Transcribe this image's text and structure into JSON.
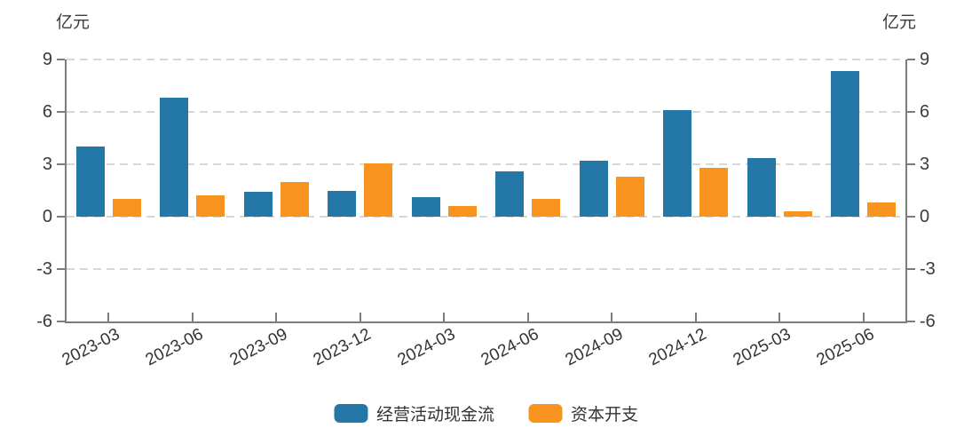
{
  "chart": {
    "left_unit": "亿元",
    "right_unit": "亿元"
  },
  "chart_data": {
    "type": "bar",
    "title": "",
    "categories": [
      "2023-03",
      "2023-06",
      "2023-09",
      "2023-12",
      "2024-03",
      "2024-06",
      "2024-09",
      "2024-12",
      "2025-03",
      "2025-06"
    ],
    "series": [
      {
        "name": "经营活动现金流",
        "color": "#2478A8",
        "values": [
          4.0,
          6.8,
          1.4,
          1.5,
          1.1,
          2.6,
          3.2,
          6.1,
          3.35,
          8.35
        ]
      },
      {
        "name": "资本开支",
        "color": "#F7931E",
        "values": [
          1.0,
          1.2,
          2.0,
          3.05,
          0.6,
          1.0,
          2.3,
          2.8,
          0.3,
          0.8
        ]
      }
    ],
    "ylabel_left": "亿元",
    "ylabel_right": "亿元",
    "ylim": [
      -6,
      9
    ],
    "yticks": [
      9,
      6,
      3,
      0,
      -3,
      -6
    ],
    "grid": "horizontal-dashed",
    "legend_position": "bottom",
    "xlabel_rotation_deg": -27
  }
}
